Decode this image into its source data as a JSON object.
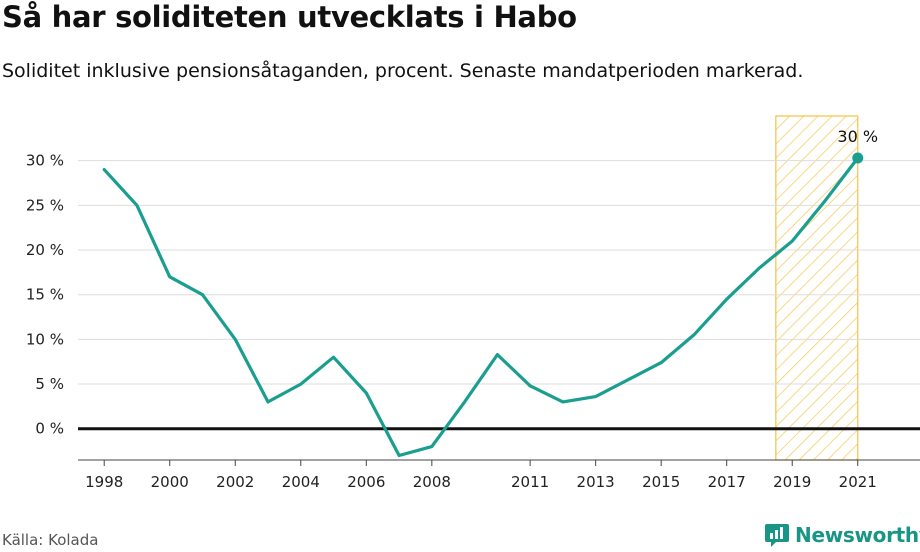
{
  "title": "Så har soliditeten utvecklats i Habo",
  "subtitle": "Soliditet inklusive pensionsåtaganden, procent. Senaste mandatperioden markerad.",
  "source": "Källa: Kolada",
  "brand": {
    "name": "Newsworthy",
    "icon": "newsworthy-logo-icon"
  },
  "colors": {
    "line": "#1a9e8f",
    "highlight": "#f5c242",
    "zero_line": "#111111",
    "grid": "#dddddd"
  },
  "chart_data": {
    "type": "line",
    "title": "Så har soliditeten utvecklats i Habo",
    "xlabel": "",
    "ylabel": "",
    "xlim": [
      1997.2,
      2022.9
    ],
    "ylim": [
      -3.5,
      35
    ],
    "yticks": [
      0,
      5,
      10,
      15,
      20,
      25,
      30
    ],
    "ytick_labels": [
      "0 %",
      "5 %",
      "10 %",
      "15 %",
      "20 %",
      "25 %",
      "30 %"
    ],
    "xticks": [
      1998,
      2000,
      2002,
      2004,
      2006,
      2008,
      2011,
      2013,
      2015,
      2017,
      2019,
      2021
    ],
    "xtick_labels": [
      "1998",
      "2000",
      "2002",
      "2004",
      "2006",
      "2008",
      "2011",
      "2013",
      "2015",
      "2017",
      "2019",
      "2021"
    ],
    "grid": true,
    "highlight_period": [
      2018.5,
      2021
    ],
    "series": [
      {
        "x": [
          1998,
          1999,
          2000,
          2001,
          2002,
          2003,
          2004,
          2005,
          2006,
          2007,
          2008,
          2009,
          2010,
          2011,
          2012,
          2013,
          2014,
          2015,
          2016,
          2017,
          2018,
          2019,
          2020,
          2021
        ],
        "values": [
          29,
          25,
          17,
          15,
          10,
          3,
          5,
          8,
          4,
          -3,
          -2,
          3,
          8.3,
          4.8,
          3,
          3.6,
          5.5,
          7.4,
          10.5,
          14.5,
          18,
          21,
          25.5,
          30.3
        ]
      }
    ],
    "annotations": [
      {
        "x": 2021,
        "y": 30.3,
        "text": "30 %"
      }
    ]
  }
}
